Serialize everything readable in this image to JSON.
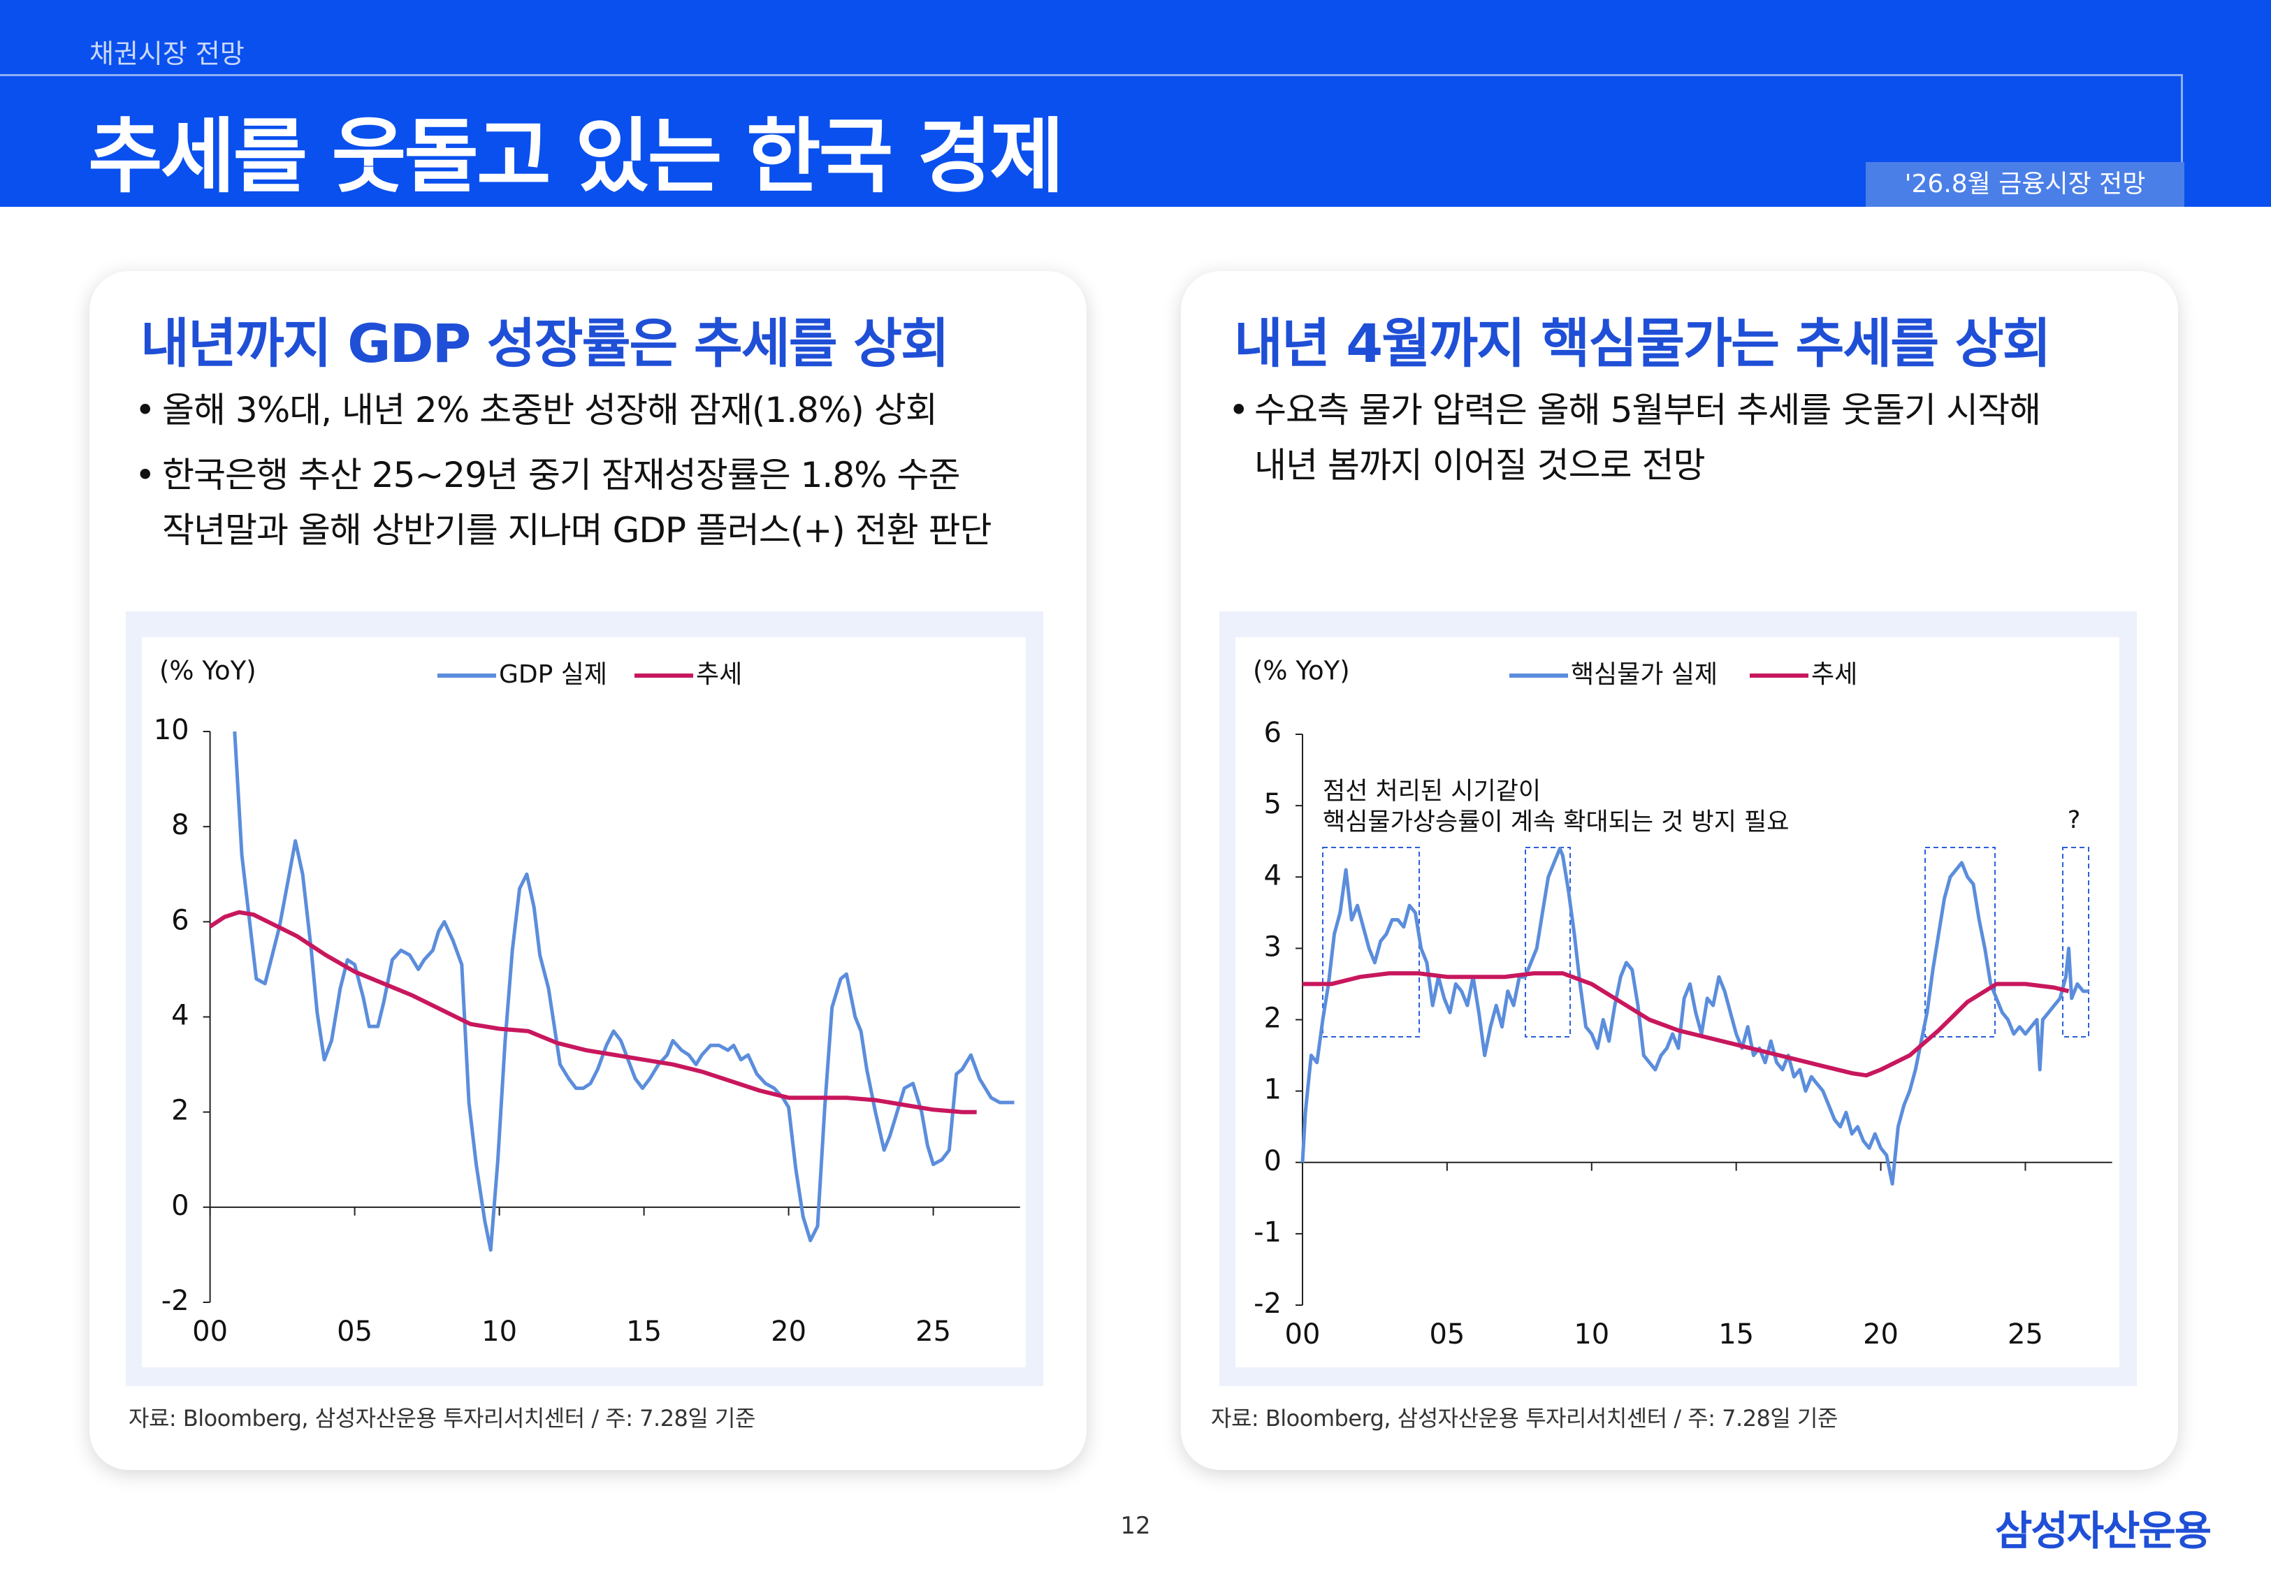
{
  "header": {
    "category": "채권시장 전망",
    "title": "추세를 웃돌고 있는 한국 경제",
    "tag": "'26.8월 금융시장 전망"
  },
  "footer": {
    "page": "12",
    "brand": "삼성자산운용"
  },
  "chart_data": [
    {
      "type": "line",
      "title": "내년까지 GDP 성장률은 추세를 상회",
      "notes": [
        [
          "올해 3%대, 내년 2% 초중반 성장해 잠재(1.8%) 상회"
        ],
        [
          "한국은행 추산 25~29년 중기 잠재성장률은 1.8% 수준",
          "작년말과 올해 상반기를 지나며 GDP 플러스(+) 전환 판단"
        ]
      ],
      "y_label": "(% YoY)",
      "source": "자료: Bloomberg, 삼성자산운용 투자리서치센터 / 주: 7.28일 기준",
      "xlim": [
        0,
        28
      ],
      "xticks": [
        {
          "value": 0,
          "label": "00"
        },
        {
          "value": 5,
          "label": "05"
        },
        10,
        15,
        20,
        25
      ],
      "ylim": [
        -2,
        10
      ],
      "yticks": [
        -2,
        0,
        2,
        4,
        6,
        8,
        10
      ],
      "series": [
        {
          "name": "GDP 실제",
          "color": "#5b8ddc",
          "x": [
            0.85,
            1.1,
            1.6,
            1.9,
            2.4,
            2.8,
            2.95,
            3.2,
            3.5,
            3.7,
            3.95,
            4.2,
            4.5,
            4.75,
            5.0,
            5.3,
            5.5,
            5.8,
            6.0,
            6.3,
            6.6,
            6.9,
            7.2,
            7.4,
            7.7,
            7.9,
            8.1,
            8.4,
            8.7,
            8.95,
            9.2,
            9.5,
            9.7,
            9.95,
            10.2,
            10.45,
            10.7,
            10.95,
            11.2,
            11.4,
            11.7,
            11.9,
            12.1,
            12.4,
            12.65,
            12.9,
            13.15,
            13.4,
            13.7,
            13.95,
            14.2,
            14.45,
            14.7,
            14.95,
            15.2,
            15.5,
            15.8,
            16.0,
            16.3,
            16.55,
            16.8,
            17.0,
            17.3,
            17.6,
            17.9,
            18.1,
            18.35,
            18.6,
            18.9,
            19.2,
            19.5,
            19.8,
            20.0,
            20.25,
            20.5,
            20.75,
            21.0,
            21.25,
            21.5,
            21.8,
            22.0,
            22.3,
            22.5,
            22.7,
            23.0,
            23.3,
            23.5,
            23.8,
            24.0,
            24.3,
            24.6,
            24.8,
            25.0,
            25.3,
            25.55,
            25.8,
            26.0,
            26.3,
            26.6,
            27.0,
            27.3,
            27.8
          ],
          "values": [
            10,
            7.4,
            4.8,
            4.7,
            5.9,
            7.2,
            7.7,
            7.0,
            5.4,
            4.1,
            3.1,
            3.5,
            4.6,
            5.2,
            5.1,
            4.4,
            3.8,
            3.8,
            4.3,
            5.2,
            5.4,
            5.3,
            5.0,
            5.2,
            5.4,
            5.8,
            6.0,
            5.6,
            5.1,
            2.2,
            0.9,
            -0.3,
            -0.9,
            1.0,
            3.5,
            5.4,
            6.7,
            7.0,
            6.3,
            5.3,
            4.6,
            3.8,
            3.0,
            2.7,
            2.5,
            2.5,
            2.6,
            2.9,
            3.4,
            3.7,
            3.5,
            3.1,
            2.7,
            2.5,
            2.7,
            3.0,
            3.2,
            3.5,
            3.3,
            3.2,
            3.0,
            3.2,
            3.4,
            3.4,
            3.3,
            3.4,
            3.1,
            3.2,
            2.8,
            2.6,
            2.5,
            2.3,
            2.1,
            0.8,
            -0.2,
            -0.7,
            -0.4,
            2.1,
            4.2,
            4.8,
            4.9,
            4.0,
            3.7,
            2.9,
            2.0,
            1.2,
            1.5,
            2.1,
            2.5,
            2.6,
            2.0,
            1.3,
            0.9,
            1.0,
            1.2,
            2.8,
            2.9,
            3.2,
            2.7,
            2.3,
            2.2,
            2.2
          ]
        },
        {
          "name": "추세",
          "color": "#c8175d",
          "x": [
            0,
            0.5,
            1,
            1.5,
            2,
            3,
            4,
            5,
            6,
            7,
            8,
            9,
            10,
            11,
            12,
            13,
            14,
            15,
            16,
            17,
            18,
            19,
            20,
            21,
            22,
            23,
            24,
            25,
            26,
            26.5
          ],
          "values": [
            5.9,
            6.1,
            6.2,
            6.15,
            6.0,
            5.7,
            5.3,
            4.95,
            4.7,
            4.45,
            4.15,
            3.85,
            3.75,
            3.7,
            3.45,
            3.3,
            3.2,
            3.1,
            3.0,
            2.85,
            2.65,
            2.45,
            2.3,
            2.3,
            2.3,
            2.25,
            2.15,
            2.05,
            2.0,
            2.0
          ]
        }
      ]
    },
    {
      "type": "line",
      "title": "내년 4월까지 핵심물가는 추세를 상회",
      "notes": [
        [
          "수요측 물가 압력은 올해 5월부터 추세를 웃돌기 시작해",
          "내년 봄까지 이어질 것으로 전망"
        ]
      ],
      "y_label": "(% YoY)",
      "source": "자료: Bloomberg, 삼성자산운용 투자리서치센터 / 주: 7.28일 기준",
      "annotations": [
        "점선 처리된 시기같이",
        "핵심물가상승률이 계속 확대되는 것 방지 필요",
        "?"
      ],
      "xlim": [
        0,
        28
      ],
      "xticks": [
        {
          "value": 0,
          "label": "00"
        },
        {
          "value": 5,
          "label": "05"
        },
        10,
        15,
        20,
        25
      ],
      "ylim": [
        -2,
        6
      ],
      "yticks": [
        -2,
        -1,
        0,
        1,
        2,
        3,
        4,
        5,
        6
      ],
      "series": [
        {
          "name": "핵심물가 실제",
          "color": "#5b8ddc",
          "x": [
            0,
            0.1,
            0.3,
            0.5,
            0.7,
            0.9,
            1.1,
            1.3,
            1.5,
            1.7,
            1.9,
            2.1,
            2.3,
            2.5,
            2.7,
            2.9,
            3.1,
            3.3,
            3.5,
            3.7,
            3.9,
            4.1,
            4.3,
            4.5,
            4.7,
            4.9,
            5.1,
            5.3,
            5.5,
            5.7,
            5.9,
            6.1,
            6.3,
            6.5,
            6.7,
            6.9,
            7.1,
            7.3,
            7.5,
            7.7,
            7.9,
            8.1,
            8.3,
            8.5,
            8.7,
            8.9,
            9.0,
            9.2,
            9.4,
            9.6,
            9.8,
            10.0,
            10.2,
            10.4,
            10.6,
            10.8,
            11.0,
            11.2,
            11.4,
            11.6,
            11.8,
            12.0,
            12.2,
            12.4,
            12.6,
            12.8,
            13.0,
            13.2,
            13.4,
            13.6,
            13.8,
            14.0,
            14.2,
            14.4,
            14.6,
            14.8,
            15.0,
            15.2,
            15.4,
            15.6,
            15.8,
            16.0,
            16.2,
            16.4,
            16.6,
            16.8,
            17.0,
            17.2,
            17.4,
            17.6,
            17.8,
            18.0,
            18.2,
            18.4,
            18.6,
            18.8,
            19.0,
            19.2,
            19.4,
            19.6,
            19.8,
            20.0,
            20.2,
            20.4,
            20.6,
            20.8,
            21.0,
            21.2,
            21.4,
            21.6,
            21.8,
            22.0,
            22.2,
            22.4,
            22.6,
            22.8,
            23.0,
            23.2,
            23.4,
            23.6,
            23.8,
            24.0,
            24.2,
            24.4,
            24.6,
            24.8,
            25.0,
            25.2,
            25.4,
            25.5,
            25.6,
            25.8,
            26.0,
            26.2,
            26.4,
            26.5,
            26.6,
            26.8,
            27.0,
            27.2
          ],
          "values": [
            0,
            0.7,
            1.5,
            1.4,
            2.0,
            2.5,
            3.2,
            3.5,
            4.1,
            3.4,
            3.6,
            3.3,
            3.0,
            2.8,
            3.1,
            3.2,
            3.4,
            3.4,
            3.3,
            3.6,
            3.5,
            3.0,
            2.8,
            2.2,
            2.6,
            2.3,
            2.1,
            2.5,
            2.4,
            2.2,
            2.6,
            2.1,
            1.5,
            1.9,
            2.2,
            1.9,
            2.4,
            2.2,
            2.6,
            2.6,
            2.8,
            3.0,
            3.5,
            4.0,
            4.2,
            4.4,
            4.3,
            3.8,
            3.2,
            2.5,
            1.9,
            1.8,
            1.6,
            2.0,
            1.7,
            2.2,
            2.6,
            2.8,
            2.7,
            2.2,
            1.5,
            1.4,
            1.3,
            1.5,
            1.6,
            1.8,
            1.6,
            2.3,
            2.5,
            2.1,
            1.8,
            2.3,
            2.2,
            2.6,
            2.4,
            2.1,
            1.8,
            1.6,
            1.9,
            1.5,
            1.6,
            1.4,
            1.7,
            1.4,
            1.3,
            1.5,
            1.2,
            1.3,
            1.0,
            1.2,
            1.1,
            1.0,
            0.8,
            0.6,
            0.5,
            0.7,
            0.4,
            0.5,
            0.3,
            0.2,
            0.4,
            0.2,
            0.1,
            -0.3,
            0.5,
            0.8,
            1.0,
            1.3,
            1.7,
            2.1,
            2.7,
            3.2,
            3.7,
            4.0,
            4.1,
            4.2,
            4.0,
            3.9,
            3.4,
            3.0,
            2.5,
            2.3,
            2.1,
            2.0,
            1.8,
            1.9,
            1.8,
            1.9,
            2.0,
            1.3,
            2.0,
            2.1,
            2.2,
            2.3,
            2.6,
            3.0,
            2.3,
            2.5,
            2.4,
            2.4
          ]
        },
        {
          "name": "추세",
          "color": "#c8175d",
          "x": [
            0,
            1,
            2,
            3,
            4,
            5,
            6,
            7,
            8,
            9,
            10,
            11,
            12,
            13,
            14,
            15,
            16,
            17,
            18,
            19,
            19.5,
            20,
            21,
            22,
            23,
            24,
            25,
            26,
            26.5
          ],
          "values": [
            2.5,
            2.5,
            2.6,
            2.65,
            2.65,
            2.6,
            2.6,
            2.6,
            2.65,
            2.65,
            2.5,
            2.25,
            2.0,
            1.85,
            1.75,
            1.65,
            1.55,
            1.45,
            1.35,
            1.25,
            1.22,
            1.3,
            1.5,
            1.85,
            2.25,
            2.5,
            2.5,
            2.45,
            2.4
          ]
        }
      ]
    }
  ]
}
